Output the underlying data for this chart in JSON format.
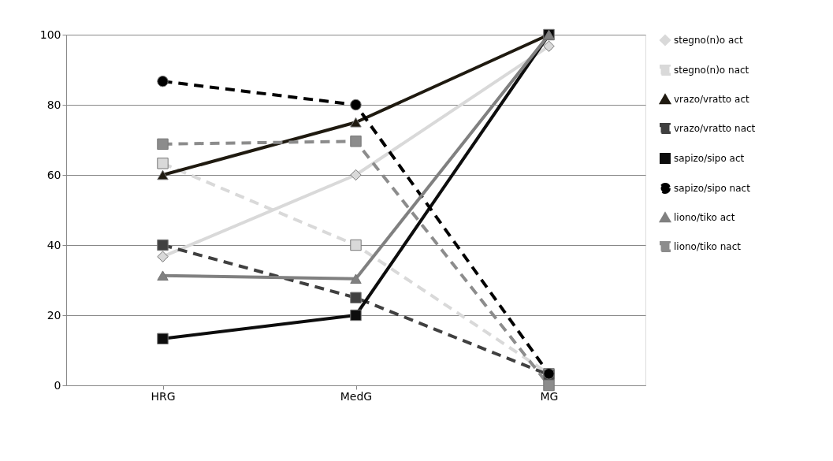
{
  "chart_data": {
    "type": "line",
    "categories": [
      "HRG",
      "MedG",
      "MG"
    ],
    "ylim": [
      0,
      100
    ],
    "yticks": [
      0,
      20,
      40,
      60,
      80,
      100
    ],
    "grid": "y",
    "legend": "right",
    "series": [
      {
        "name": "stegno(n)o act",
        "color": "#d9d9d9",
        "marker": "diamond",
        "line_style": "solid",
        "values": [
          36.7,
          60,
          96.7
        ]
      },
      {
        "name": "stegno(n)o nact",
        "color": "#d9d9d9",
        "marker": "square",
        "line_style": "dashed",
        "values": [
          63.3,
          40,
          3.3
        ]
      },
      {
        "name": "vrazo/vratto act",
        "color": "#1f1a10",
        "marker": "triangle",
        "line_style": "solid",
        "values": [
          60,
          75,
          100
        ]
      },
      {
        "name": "vrazo/vratto nact",
        "color": "#404040",
        "marker": "square",
        "line_style": "dashed",
        "values": [
          40,
          25,
          3
        ]
      },
      {
        "name": "sapizo/sipo act",
        "color": "#0d0d0d",
        "marker": "square",
        "line_style": "solid",
        "values": [
          13.3,
          20,
          100
        ]
      },
      {
        "name": "sapizo/sipo nact",
        "color": "#000000",
        "marker": "circle",
        "line_style": "dashed",
        "values": [
          86.7,
          80,
          3.3
        ]
      },
      {
        "name": "liono/tiko act",
        "color": "#808080",
        "marker": "triangle",
        "line_style": "solid",
        "values": [
          31.3,
          30.4,
          100
        ]
      },
      {
        "name": "liono/tiko nact",
        "color": "#8c8c8c",
        "marker": "square",
        "line_style": "dashed",
        "values": [
          68.8,
          69.6,
          0
        ]
      }
    ]
  }
}
